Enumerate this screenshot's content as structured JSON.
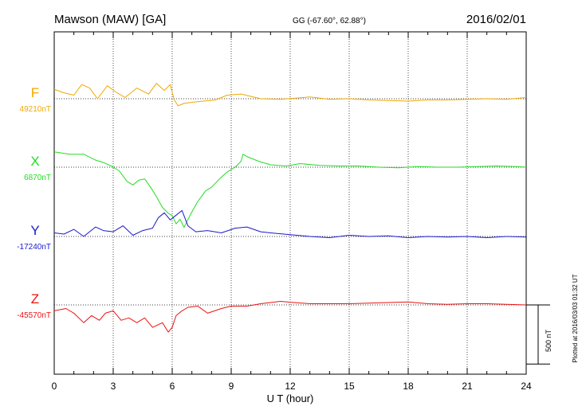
{
  "header": {
    "station": "Mawson (MAW)  [GA]",
    "coords": "GG (-67.60°,  62.88°)",
    "date": "2016/02/01"
  },
  "footer": {
    "plotted": "Plotted at 2016/03/03 01:32 UT"
  },
  "chart_data": {
    "type": "line",
    "xlabel": "U T (hour)",
    "xlim": [
      0,
      24
    ],
    "x_ticks": [
      "0",
      "3",
      "6",
      "9",
      "12",
      "15",
      "18",
      "21",
      "24"
    ],
    "scale_bar": {
      "label": "500 nT",
      "value_nT": 500
    },
    "series": [
      {
        "name": "F",
        "baseline_label": "49210nT",
        "baseline_nT": 49210,
        "color": "#f0a800",
        "points": [
          [
            0,
            49290
          ],
          [
            0.5,
            49260
          ],
          [
            1,
            49240
          ],
          [
            1.4,
            49330
          ],
          [
            1.8,
            49300
          ],
          [
            2.2,
            49210
          ],
          [
            2.7,
            49320
          ],
          [
            3.2,
            49260
          ],
          [
            3.6,
            49220
          ],
          [
            4.2,
            49300
          ],
          [
            4.8,
            49250
          ],
          [
            5.2,
            49340
          ],
          [
            5.6,
            49280
          ],
          [
            5.9,
            49330
          ],
          [
            6.1,
            49200
          ],
          [
            6.3,
            49150
          ],
          [
            6.6,
            49170
          ],
          [
            7,
            49180
          ],
          [
            7.6,
            49190
          ],
          [
            8.2,
            49200
          ],
          [
            8.8,
            49240
          ],
          [
            9.5,
            49250
          ],
          [
            10.5,
            49210
          ],
          [
            11.5,
            49205
          ],
          [
            13,
            49225
          ],
          [
            14,
            49205
          ],
          [
            15,
            49210
          ],
          [
            16,
            49200
          ],
          [
            17,
            49195
          ],
          [
            18,
            49190
          ],
          [
            19,
            49200
          ],
          [
            20,
            49200
          ],
          [
            22,
            49210
          ],
          [
            23,
            49205
          ],
          [
            24,
            49220
          ]
        ]
      },
      {
        "name": "X",
        "baseline_label": "6870nT",
        "baseline_nT": 6870,
        "color": "#22dd22",
        "points": [
          [
            0,
            7000
          ],
          [
            0.8,
            6980
          ],
          [
            1.5,
            6980
          ],
          [
            2.1,
            6930
          ],
          [
            2.5,
            6910
          ],
          [
            2.9,
            6880
          ],
          [
            3.3,
            6840
          ],
          [
            3.7,
            6750
          ],
          [
            4,
            6720
          ],
          [
            4.3,
            6760
          ],
          [
            4.6,
            6770
          ],
          [
            4.9,
            6700
          ],
          [
            5.2,
            6620
          ],
          [
            5.5,
            6530
          ],
          [
            5.8,
            6480
          ],
          [
            6,
            6460
          ],
          [
            6.2,
            6390
          ],
          [
            6.4,
            6430
          ],
          [
            6.6,
            6360
          ],
          [
            6.9,
            6460
          ],
          [
            7.3,
            6580
          ],
          [
            7.7,
            6670
          ],
          [
            8,
            6700
          ],
          [
            8.4,
            6770
          ],
          [
            8.8,
            6830
          ],
          [
            9.2,
            6870
          ],
          [
            9.5,
            6920
          ],
          [
            9.6,
            6980
          ],
          [
            9.8,
            6960
          ],
          [
            10.4,
            6920
          ],
          [
            11,
            6890
          ],
          [
            11.8,
            6880
          ],
          [
            12.5,
            6900
          ],
          [
            13.5,
            6885
          ],
          [
            14.5,
            6880
          ],
          [
            15.5,
            6880
          ],
          [
            16.5,
            6870
          ],
          [
            17.5,
            6865
          ],
          [
            18.5,
            6875
          ],
          [
            19.5,
            6870
          ],
          [
            20.5,
            6870
          ],
          [
            21.5,
            6875
          ],
          [
            22.5,
            6880
          ],
          [
            23.5,
            6875
          ],
          [
            24,
            6870
          ]
        ]
      },
      {
        "name": "Y",
        "baseline_label": "-17240nT",
        "baseline_nT": -17240,
        "color": "#1a1acc",
        "points": [
          [
            0,
            -17210
          ],
          [
            0.5,
            -17220
          ],
          [
            1,
            -17180
          ],
          [
            1.5,
            -17240
          ],
          [
            2.1,
            -17160
          ],
          [
            2.5,
            -17190
          ],
          [
            3,
            -17200
          ],
          [
            3.5,
            -17150
          ],
          [
            4,
            -17230
          ],
          [
            4.5,
            -17190
          ],
          [
            5,
            -17170
          ],
          [
            5.3,
            -17080
          ],
          [
            5.6,
            -17040
          ],
          [
            5.9,
            -17100
          ],
          [
            6.2,
            -17060
          ],
          [
            6.5,
            -17020
          ],
          [
            6.8,
            -17150
          ],
          [
            7.2,
            -17200
          ],
          [
            7.8,
            -17190
          ],
          [
            8.5,
            -17210
          ],
          [
            9.2,
            -17170
          ],
          [
            9.8,
            -17160
          ],
          [
            10.5,
            -17200
          ],
          [
            11,
            -17210
          ],
          [
            12,
            -17225
          ],
          [
            13,
            -17240
          ],
          [
            14,
            -17250
          ],
          [
            15,
            -17230
          ],
          [
            16,
            -17240
          ],
          [
            17,
            -17235
          ],
          [
            18,
            -17250
          ],
          [
            19,
            -17240
          ],
          [
            20,
            -17245
          ],
          [
            21,
            -17240
          ],
          [
            22,
            -17250
          ],
          [
            23,
            -17240
          ],
          [
            24,
            -17245
          ]
        ]
      },
      {
        "name": "Z",
        "baseline_label": "-45570nT",
        "baseline_nT": -45570,
        "color": "#ee1111",
        "points": [
          [
            0,
            -45620
          ],
          [
            0.6,
            -45600
          ],
          [
            1,
            -45640
          ],
          [
            1.5,
            -45720
          ],
          [
            1.9,
            -45660
          ],
          [
            2.3,
            -45700
          ],
          [
            2.6,
            -45640
          ],
          [
            3,
            -45620
          ],
          [
            3.4,
            -45700
          ],
          [
            3.8,
            -45680
          ],
          [
            4.2,
            -45720
          ],
          [
            4.6,
            -45680
          ],
          [
            5,
            -45760
          ],
          [
            5.5,
            -45720
          ],
          [
            5.8,
            -45800
          ],
          [
            6,
            -45760
          ],
          [
            6.2,
            -45660
          ],
          [
            6.5,
            -45620
          ],
          [
            6.8,
            -45590
          ],
          [
            7.3,
            -45580
          ],
          [
            7.8,
            -45640
          ],
          [
            8.5,
            -45600
          ],
          [
            9,
            -45580
          ],
          [
            9.8,
            -45580
          ],
          [
            10.5,
            -45560
          ],
          [
            11.5,
            -45540
          ],
          [
            12.2,
            -45550
          ],
          [
            13,
            -45560
          ],
          [
            14,
            -45560
          ],
          [
            15,
            -45560
          ],
          [
            16,
            -45555
          ],
          [
            17,
            -45550
          ],
          [
            18,
            -45545
          ],
          [
            19,
            -45560
          ],
          [
            20,
            -45565
          ],
          [
            21,
            -45560
          ],
          [
            22,
            -45560
          ],
          [
            23,
            -45565
          ],
          [
            24,
            -45570
          ]
        ]
      }
    ]
  }
}
